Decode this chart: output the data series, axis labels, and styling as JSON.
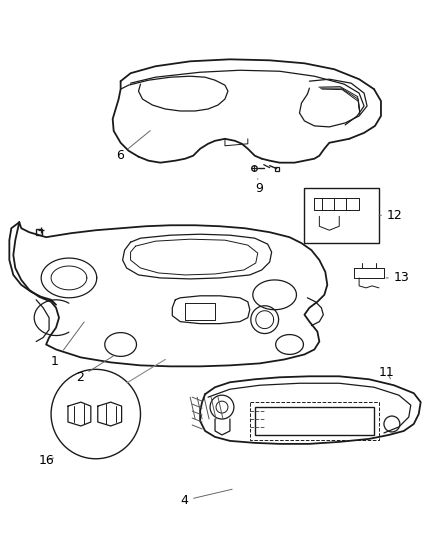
{
  "background_color": "#ffffff",
  "line_color": "#1a1a1a",
  "label_color": "#000000",
  "figsize": [
    4.38,
    5.33
  ],
  "dpi": 100
}
